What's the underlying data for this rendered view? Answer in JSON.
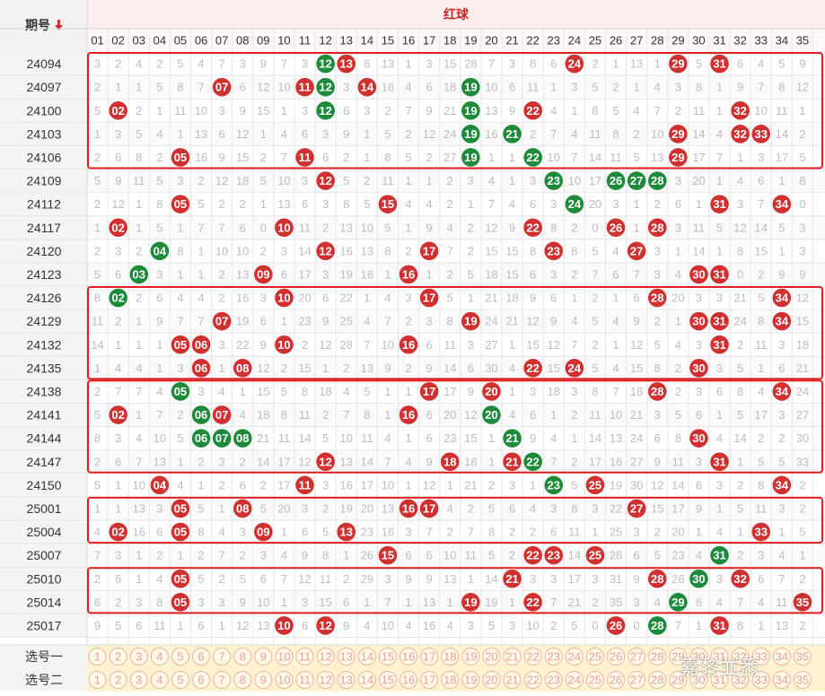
{
  "header": {
    "period_label": "期号",
    "sort_arrow_icon": "arrow-down-icon",
    "red_ball_label": "红球",
    "numbers": [
      "01",
      "02",
      "03",
      "04",
      "05",
      "06",
      "07",
      "08",
      "09",
      "10",
      "11",
      "12",
      "13",
      "14",
      "15",
      "16",
      "17",
      "18",
      "19",
      "20",
      "21",
      "22",
      "23",
      "24",
      "25",
      "26",
      "27",
      "28",
      "29",
      "30",
      "31",
      "32",
      "33",
      "34",
      "35"
    ]
  },
  "colors": {
    "red_ball": "#d03030",
    "green_ball": "#1e8b3a",
    "header_red": "#c62828",
    "box_red": "#e02020",
    "miss_text": "#bdbdbd",
    "pick_fill": "#fff3cf",
    "pick_border": "#f0b0a8",
    "pick_text": "#e8a0a0"
  },
  "rows": [
    {
      "period": "24094",
      "misses": [
        3,
        2,
        4,
        2,
        5,
        4,
        7,
        3,
        9,
        7,
        3,
        0,
        0,
        8,
        13,
        1,
        3,
        15,
        28,
        7,
        3,
        8,
        6,
        0,
        2,
        1,
        13,
        1,
        0,
        5,
        0,
        6,
        4,
        5,
        9
      ],
      "balls": {
        "12": "g",
        "13": "r",
        "24": "r",
        "29": "r",
        "31": "r"
      }
    },
    {
      "period": "24097",
      "misses": [
        2,
        1,
        1,
        5,
        8,
        7,
        0,
        6,
        12,
        10,
        0,
        0,
        3,
        0,
        16,
        4,
        6,
        18,
        0,
        10,
        6,
        11,
        1,
        3,
        5,
        2,
        1,
        4,
        3,
        8,
        1,
        9,
        7,
        8,
        12
      ],
      "balls": {
        "7": "r",
        "11": "r",
        "12": "g",
        "14": "r",
        "19": "g"
      }
    },
    {
      "period": "24100",
      "misses": [
        5,
        0,
        2,
        1,
        11,
        10,
        3,
        9,
        15,
        1,
        3,
        0,
        6,
        3,
        2,
        7,
        9,
        21,
        0,
        13,
        9,
        0,
        4,
        1,
        8,
        5,
        4,
        7,
        2,
        11,
        1,
        0,
        10,
        11,
        1
      ],
      "balls": {
        "2": "r",
        "12": "g",
        "19": "g",
        "22": "r",
        "32": "r"
      }
    },
    {
      "period": "24103",
      "misses": [
        1,
        3,
        5,
        4,
        1,
        13,
        6,
        12,
        1,
        4,
        6,
        3,
        9,
        1,
        5,
        2,
        12,
        24,
        0,
        16,
        0,
        2,
        7,
        4,
        11,
        8,
        2,
        10,
        0,
        14,
        4,
        0,
        0,
        14,
        2
      ],
      "balls": {
        "19": "g",
        "21": "g",
        "29": "r",
        "32": "r",
        "33": "r"
      }
    },
    {
      "period": "24106",
      "misses": [
        2,
        6,
        8,
        2,
        0,
        16,
        9,
        15,
        2,
        7,
        0,
        6,
        2,
        1,
        8,
        5,
        2,
        27,
        0,
        1,
        1,
        0,
        10,
        7,
        14,
        11,
        5,
        13,
        0,
        17,
        7,
        1,
        3,
        17,
        5
      ],
      "balls": {
        "5": "r",
        "11": "r",
        "19": "g",
        "22": "g",
        "29": "r"
      }
    },
    {
      "period": "24109",
      "misses": [
        5,
        9,
        11,
        5,
        3,
        2,
        12,
        18,
        5,
        10,
        3,
        0,
        5,
        2,
        11,
        1,
        1,
        2,
        3,
        4,
        1,
        3,
        0,
        10,
        17,
        0,
        0,
        0,
        3,
        20,
        1,
        4,
        6,
        1,
        8
      ],
      "balls": {
        "12": "r",
        "23": "g",
        "26": "g",
        "27": "g",
        "28": "g"
      }
    },
    {
      "period": "24112",
      "misses": [
        2,
        12,
        1,
        8,
        0,
        5,
        2,
        2,
        1,
        13,
        6,
        3,
        8,
        5,
        0,
        4,
        4,
        2,
        1,
        7,
        4,
        6,
        3,
        0,
        20,
        3,
        1,
        2,
        6,
        1,
        0,
        3,
        7,
        9,
        0
      ],
      "balls": {
        "5": "r",
        "15": "r",
        "24": "g",
        "31": "r",
        "34": "r"
      }
    },
    {
      "period": "24117",
      "misses": [
        1,
        0,
        1,
        5,
        1,
        7,
        7,
        6,
        0,
        0,
        11,
        2,
        13,
        10,
        5,
        1,
        9,
        4,
        2,
        12,
        9,
        0,
        8,
        2,
        0,
        6,
        1,
        0,
        3,
        11,
        5,
        12,
        14,
        5,
        3
      ],
      "balls": {
        "2": "r",
        "10": "r",
        "22": "r",
        "26": "r",
        "28": "r"
      }
    },
    {
      "period": "24120",
      "misses": [
        2,
        3,
        2,
        0,
        8,
        1,
        10,
        10,
        2,
        3,
        14,
        0,
        16,
        13,
        8,
        2,
        0,
        7,
        2,
        15,
        15,
        8,
        0,
        8,
        5,
        4,
        0,
        3,
        1,
        14,
        1,
        8,
        15,
        1,
        3
      ],
      "balls": {
        "4": "g",
        "12": "r",
        "17": "r",
        "23": "r",
        "27": "r"
      }
    },
    {
      "period": "24123",
      "misses": [
        5,
        6,
        0,
        3,
        1,
        1,
        2,
        13,
        0,
        6,
        17,
        3,
        19,
        16,
        1,
        0,
        1,
        2,
        5,
        18,
        15,
        6,
        3,
        2,
        7,
        6,
        7,
        3,
        4,
        17,
        0,
        0,
        2,
        9,
        9
      ],
      "balls": {
        "3": "g",
        "9": "r",
        "16": "r",
        "30": "r",
        "31": "r"
      }
    },
    {
      "period": "24126",
      "misses": [
        8,
        0,
        2,
        6,
        4,
        4,
        2,
        16,
        3,
        0,
        20,
        6,
        22,
        1,
        4,
        3,
        0,
        5,
        1,
        21,
        18,
        9,
        6,
        1,
        2,
        1,
        6,
        0,
        20,
        3,
        3,
        21,
        5,
        0,
        12
      ],
      "balls": {
        "2": "g",
        "10": "r",
        "17": "r",
        "28": "r",
        "34": "r"
      }
    },
    {
      "period": "24129",
      "misses": [
        11,
        2,
        1,
        9,
        7,
        7,
        0,
        19,
        6,
        1,
        23,
        9,
        25,
        4,
        7,
        2,
        3,
        8,
        0,
        24,
        21,
        12,
        9,
        4,
        5,
        4,
        9,
        2,
        1,
        0,
        0,
        24,
        8,
        0,
        15
      ],
      "balls": {
        "7": "r",
        "19": "r",
        "30": "r",
        "31": "r",
        "34": "r"
      }
    },
    {
      "period": "24132",
      "misses": [
        14,
        1,
        1,
        1,
        0,
        0,
        3,
        22,
        9,
        0,
        2,
        12,
        28,
        7,
        10,
        0,
        6,
        11,
        3,
        27,
        1,
        15,
        12,
        7,
        2,
        1,
        12,
        5,
        4,
        3,
        0,
        2,
        11,
        3,
        18
      ],
      "balls": {
        "5": "r",
        "6": "r",
        "10": "r",
        "16": "r",
        "31": "r"
      }
    },
    {
      "period": "24135",
      "misses": [
        1,
        4,
        4,
        1,
        3,
        0,
        1,
        0,
        12,
        2,
        15,
        1,
        2,
        13,
        9,
        2,
        9,
        14,
        6,
        30,
        4,
        0,
        15,
        0,
        5,
        4,
        15,
        8,
        2,
        0,
        3,
        5,
        1,
        6,
        21
      ],
      "balls": {
        "6": "r",
        "8": "r",
        "22": "r",
        "24": "r",
        "30": "r"
      }
    },
    {
      "period": "24138",
      "misses": [
        2,
        7,
        7,
        4,
        0,
        3,
        4,
        1,
        15,
        5,
        8,
        18,
        4,
        5,
        1,
        1,
        0,
        17,
        9,
        0,
        1,
        3,
        18,
        3,
        8,
        7,
        18,
        0,
        2,
        3,
        6,
        8,
        4,
        0,
        24
      ],
      "balls": {
        "5": "g",
        "17": "r",
        "20": "r",
        "28": "r",
        "34": "r"
      }
    },
    {
      "period": "24141",
      "misses": [
        5,
        0,
        1,
        7,
        2,
        0,
        0,
        4,
        18,
        8,
        11,
        2,
        7,
        8,
        1,
        0,
        6,
        20,
        12,
        0,
        4,
        6,
        1,
        2,
        11,
        10,
        21,
        3,
        5,
        6,
        1,
        5,
        17,
        3,
        27
      ],
      "balls": {
        "2": "r",
        "6": "g",
        "7": "r",
        "16": "r",
        "20": "g"
      }
    },
    {
      "period": "24144",
      "misses": [
        8,
        3,
        4,
        10,
        5,
        0,
        0,
        0,
        21,
        11,
        14,
        5,
        10,
        11,
        4,
        1,
        6,
        23,
        15,
        1,
        0,
        9,
        4,
        1,
        14,
        13,
        24,
        6,
        8,
        0,
        4,
        14,
        2,
        2,
        30
      ],
      "balls": {
        "6": "g",
        "7": "g",
        "8": "g",
        "21": "g",
        "30": "r"
      }
    },
    {
      "period": "24147",
      "misses": [
        2,
        6,
        7,
        13,
        1,
        2,
        3,
        2,
        14,
        17,
        12,
        0,
        13,
        14,
        7,
        4,
        9,
        0,
        18,
        1,
        0,
        0,
        7,
        2,
        17,
        16,
        27,
        9,
        11,
        3,
        0,
        1,
        5,
        5,
        33
      ],
      "balls": {
        "12": "r",
        "18": "r",
        "21": "r",
        "22": "g",
        "31": "r"
      }
    },
    {
      "period": "24150",
      "misses": [
        5,
        1,
        10,
        0,
        4,
        1,
        2,
        6,
        2,
        17,
        0,
        3,
        16,
        17,
        10,
        1,
        12,
        1,
        21,
        2,
        3,
        1,
        0,
        5,
        0,
        19,
        30,
        12,
        14,
        6,
        3,
        2,
        8,
        0,
        2
      ],
      "balls": {
        "4": "r",
        "11": "r",
        "23": "g",
        "25": "r",
        "34": "r"
      }
    },
    {
      "period": "25001",
      "misses": [
        1,
        1,
        13,
        3,
        0,
        5,
        1,
        0,
        5,
        20,
        3,
        2,
        19,
        20,
        13,
        0,
        0,
        4,
        2,
        5,
        6,
        4,
        3,
        8,
        3,
        22,
        0,
        15,
        17,
        9,
        1,
        5,
        11,
        3,
        2
      ],
      "balls": {
        "5": "r",
        "8": "r",
        "16": "r",
        "17": "r",
        "27": "r"
      }
    },
    {
      "period": "25004",
      "misses": [
        4,
        0,
        16,
        6,
        0,
        8,
        4,
        3,
        0,
        1,
        6,
        5,
        0,
        23,
        16,
        3,
        7,
        2,
        7,
        8,
        2,
        2,
        6,
        11,
        1,
        25,
        3,
        2,
        20,
        1,
        4,
        1,
        0,
        1,
        5
      ],
      "balls": {
        "2": "r",
        "5": "r",
        "9": "r",
        "13": "r",
        "33": "r"
      }
    },
    {
      "period": "25007",
      "misses": [
        7,
        3,
        1,
        2,
        1,
        2,
        7,
        2,
        3,
        4,
        9,
        8,
        1,
        26,
        0,
        6,
        6,
        10,
        11,
        5,
        2,
        0,
        0,
        14,
        0,
        28,
        6,
        5,
        23,
        4,
        0,
        2,
        3,
        4,
        1
      ],
      "balls": {
        "15": "r",
        "22": "r",
        "23": "r",
        "25": "r",
        "31": "g"
      }
    },
    {
      "period": "25010",
      "misses": [
        2,
        6,
        1,
        4,
        0,
        5,
        2,
        5,
        6,
        7,
        12,
        11,
        2,
        29,
        3,
        9,
        9,
        13,
        1,
        14,
        0,
        3,
        3,
        17,
        3,
        31,
        9,
        0,
        26,
        0,
        3,
        0,
        6,
        7,
        2
      ],
      "balls": {
        "5": "r",
        "21": "r",
        "28": "r",
        "30": "g",
        "32": "r"
      }
    },
    {
      "period": "25014",
      "misses": [
        6,
        2,
        3,
        8,
        0,
        3,
        3,
        9,
        10,
        1,
        3,
        15,
        6,
        1,
        7,
        1,
        13,
        1,
        0,
        19,
        1,
        0,
        7,
        21,
        2,
        35,
        3,
        4,
        0,
        6,
        4,
        7,
        4,
        11,
        0
      ],
      "balls": {
        "5": "r",
        "19": "r",
        "22": "r",
        "29": "g",
        "35": "r"
      }
    },
    {
      "period": "25017",
      "misses": [
        9,
        5,
        6,
        11,
        1,
        6,
        1,
        12,
        13,
        0,
        6,
        0,
        9,
        4,
        10,
        4,
        16,
        4,
        3,
        5,
        3,
        10,
        2,
        5,
        0,
        26,
        0,
        0,
        7,
        1,
        0,
        8,
        1,
        13,
        2
      ],
      "balls": {
        "10": "r",
        "12": "r",
        "26": "r",
        "28": "g",
        "31": "r"
      }
    }
  ],
  "pick_rows": [
    {
      "label": "选号一",
      "numbers": [
        1,
        2,
        3,
        4,
        5,
        6,
        7,
        8,
        9,
        10,
        11,
        12,
        13,
        14,
        15,
        16,
        17,
        18,
        19,
        20,
        21,
        22,
        23,
        24,
        25,
        26,
        27,
        28,
        29,
        30,
        31,
        32,
        33,
        34,
        35
      ]
    },
    {
      "label": "选号二",
      "numbers": [
        1,
        2,
        3,
        4,
        5,
        6,
        7,
        8,
        9,
        10,
        11,
        12,
        13,
        14,
        15,
        16,
        17,
        18,
        19,
        20,
        21,
        22,
        23,
        24,
        25,
        26,
        27,
        28,
        29,
        30,
        31,
        32,
        33,
        34,
        35
      ]
    }
  ],
  "highlight_groups": [
    {
      "from_period": "24094",
      "to_period": "24106"
    },
    {
      "from_period": "24126",
      "to_period": "24135"
    },
    {
      "from_period": "24138",
      "to_period": "24147"
    },
    {
      "from_period": "25001",
      "to_period": "25004"
    },
    {
      "from_period": "25010",
      "to_period": "25014"
    }
  ],
  "watermark": "嘉黎並悉"
}
